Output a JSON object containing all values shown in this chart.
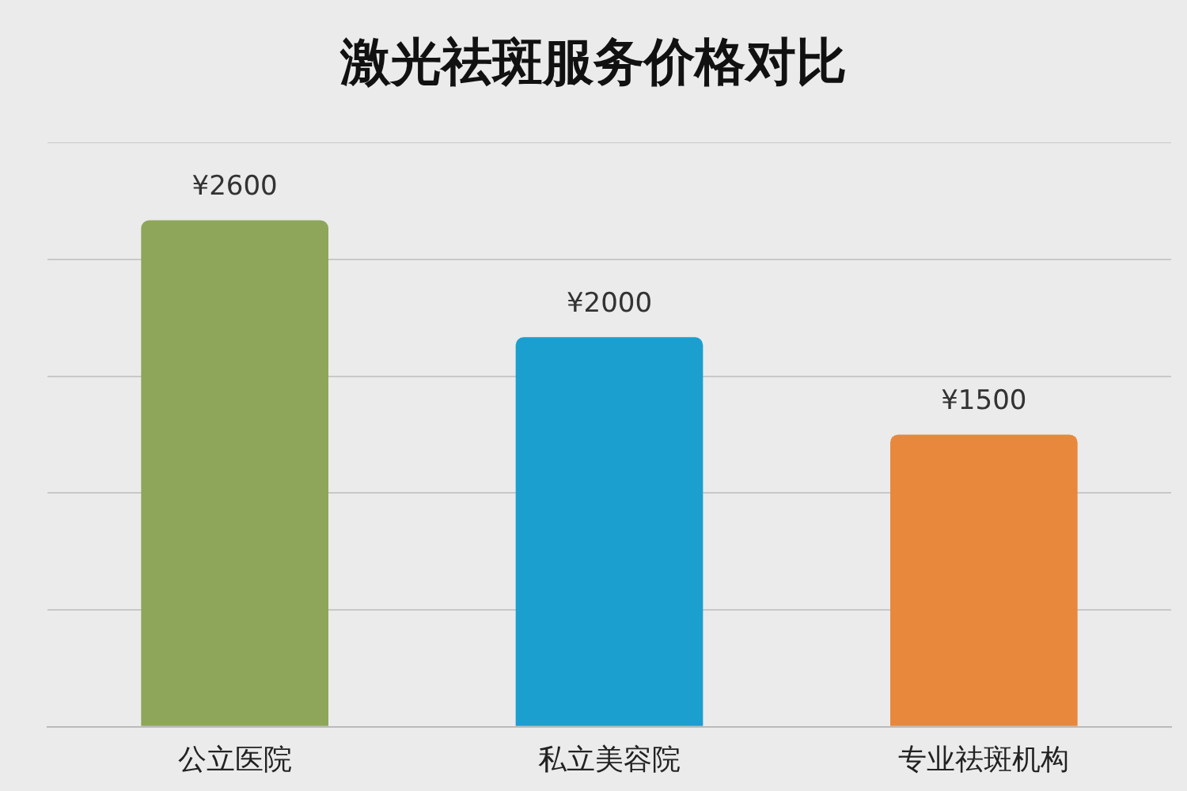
{
  "chart_data": {
    "type": "bar",
    "title": "激光祛斑服务价格对比",
    "categories": [
      "公立医院",
      "私立美容院",
      "专业祛斑机构"
    ],
    "values": [
      2600,
      2000,
      1500
    ],
    "colors": [
      "#8da65a",
      "#1a9fcf",
      "#e8883d"
    ],
    "value_labels": [
      "¥2600",
      "¥2000",
      "¥1500"
    ],
    "ylim": [
      0,
      3000
    ],
    "yticks": [
      {
        "value": 0,
        "label": null
      },
      {
        "value": 600,
        "label": null
      },
      {
        "value": 1200,
        "label": null
      },
      {
        "value": 1800,
        "label": null
      },
      {
        "value": 2400,
        "label": null
      },
      {
        "value": 3000,
        "label": null
      }
    ],
    "grid": "y",
    "tick_labels": "x",
    "legend": false
  }
}
